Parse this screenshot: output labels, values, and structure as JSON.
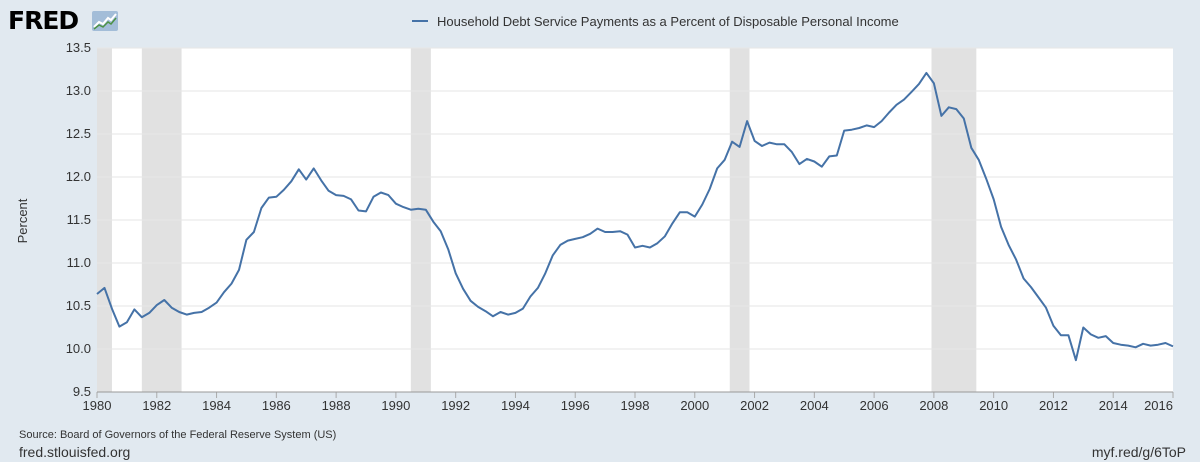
{
  "header": {
    "logo_text": "FRED",
    "logo_icon": "line-chart-icon"
  },
  "footer": {
    "source": "Source: Board of Governors of the Federal Reserve System (US)",
    "site": "fred.stlouisfed.org",
    "short_url": "myf.red/g/6ToP"
  },
  "colors": {
    "series": "#4572a7",
    "recession": "#e1e1e1",
    "frame_bg": "#e1e9f0",
    "plot_bg": "#ffffff"
  },
  "chart_data": {
    "type": "line",
    "title": "",
    "xlabel": "",
    "ylabel": "Percent",
    "legend_position": "top-center",
    "grid": true,
    "xlim": [
      1980,
      2016
    ],
    "ylim": [
      9.5,
      13.5
    ],
    "x_ticks": [
      1980,
      1982,
      1984,
      1986,
      1988,
      1990,
      1992,
      1994,
      1996,
      1998,
      2000,
      2002,
      2004,
      2006,
      2008,
      2010,
      2012,
      2014,
      2016
    ],
    "x_tick_labels": [
      "1980",
      "1982",
      "1984",
      "1986",
      "1988",
      "1990",
      "1992",
      "1994",
      "1996",
      "1998",
      "2000",
      "2002",
      "2004",
      "2006",
      "2008",
      "2010",
      "2012",
      "2014",
      "2016"
    ],
    "y_ticks": [
      9.5,
      10.0,
      10.5,
      11.0,
      11.5,
      12.0,
      12.5,
      13.0,
      13.5
    ],
    "y_tick_labels": [
      "9.5",
      "10.0",
      "10.5",
      "11.0",
      "11.5",
      "12.0",
      "12.5",
      "13.0",
      "13.5"
    ],
    "recessions": [
      [
        1980.0,
        1980.5
      ],
      [
        1981.5,
        1982.83
      ],
      [
        1990.5,
        1991.17
      ],
      [
        2001.17,
        2001.83
      ],
      [
        2007.92,
        2009.42
      ]
    ],
    "series": [
      {
        "name": "Household Debt Service Payments as a Percent of Disposable Personal Income",
        "x": [
          1980.0,
          1980.25,
          1980.5,
          1980.75,
          1981.0,
          1981.25,
          1981.5,
          1981.75,
          1982.0,
          1982.25,
          1982.5,
          1982.75,
          1983.0,
          1983.25,
          1983.5,
          1983.75,
          1984.0,
          1984.25,
          1984.5,
          1984.75,
          1985.0,
          1985.25,
          1985.5,
          1985.75,
          1986.0,
          1986.25,
          1986.5,
          1986.75,
          1987.0,
          1987.25,
          1987.5,
          1987.75,
          1988.0,
          1988.25,
          1988.5,
          1988.75,
          1989.0,
          1989.25,
          1989.5,
          1989.75,
          1990.0,
          1990.25,
          1990.5,
          1990.75,
          1991.0,
          1991.25,
          1991.5,
          1991.75,
          1992.0,
          1992.25,
          1992.5,
          1992.75,
          1993.0,
          1993.25,
          1993.5,
          1993.75,
          1994.0,
          1994.25,
          1994.5,
          1994.75,
          1995.0,
          1995.25,
          1995.5,
          1995.75,
          1996.0,
          1996.25,
          1996.5,
          1996.75,
          1997.0,
          1997.25,
          1997.5,
          1997.75,
          1998.0,
          1998.25,
          1998.5,
          1998.75,
          1999.0,
          1999.25,
          1999.5,
          1999.75,
          2000.0,
          2000.25,
          2000.5,
          2000.75,
          2001.0,
          2001.25,
          2001.5,
          2001.75,
          2002.0,
          2002.25,
          2002.5,
          2002.75,
          2003.0,
          2003.25,
          2003.5,
          2003.75,
          2004.0,
          2004.25,
          2004.5,
          2004.75,
          2005.0,
          2005.25,
          2005.5,
          2005.75,
          2006.0,
          2006.25,
          2006.5,
          2006.75,
          2007.0,
          2007.25,
          2007.5,
          2007.75,
          2008.0,
          2008.25,
          2008.5,
          2008.75,
          2009.0,
          2009.25,
          2009.5,
          2009.75,
          2010.0,
          2010.25,
          2010.5,
          2010.75,
          2011.0,
          2011.25,
          2011.5,
          2011.75,
          2012.0,
          2012.25,
          2012.5,
          2012.75,
          2013.0,
          2013.25,
          2013.5,
          2013.75,
          2014.0,
          2014.25,
          2014.5,
          2014.75,
          2015.0,
          2015.25,
          2015.5,
          2015.75,
          2016.0
        ],
        "y": [
          10.64,
          10.71,
          10.47,
          10.26,
          10.31,
          10.46,
          10.37,
          10.42,
          10.51,
          10.57,
          10.48,
          10.43,
          10.4,
          10.42,
          10.43,
          10.48,
          10.54,
          10.66,
          10.76,
          10.92,
          11.27,
          11.36,
          11.64,
          11.76,
          11.77,
          11.85,
          11.95,
          12.09,
          11.97,
          12.1,
          11.96,
          11.84,
          11.79,
          11.78,
          11.74,
          11.61,
          11.6,
          11.77,
          11.82,
          11.79,
          11.69,
          11.65,
          11.62,
          11.63,
          11.62,
          11.48,
          11.37,
          11.16,
          10.88,
          10.7,
          10.56,
          10.49,
          10.44,
          10.38,
          10.43,
          10.4,
          10.42,
          10.47,
          10.61,
          10.71,
          10.88,
          11.09,
          11.21,
          11.26,
          11.28,
          11.3,
          11.34,
          11.4,
          11.36,
          11.36,
          11.37,
          11.33,
          11.18,
          11.2,
          11.18,
          11.23,
          11.31,
          11.46,
          11.59,
          11.59,
          11.54,
          11.68,
          11.86,
          12.1,
          12.2,
          12.41,
          12.35,
          12.65,
          12.42,
          12.36,
          12.4,
          12.38,
          12.38,
          12.29,
          12.15,
          12.21,
          12.18,
          12.12,
          12.24,
          12.25,
          12.54,
          12.55,
          12.57,
          12.6,
          12.58,
          12.65,
          12.75,
          12.84,
          12.9,
          12.99,
          13.08,
          13.21,
          13.09,
          12.71,
          12.81,
          12.79,
          12.68,
          12.34,
          12.2,
          11.98,
          11.74,
          11.42,
          11.21,
          11.04,
          10.82,
          10.72,
          10.6,
          10.48,
          10.27,
          10.16,
          10.16,
          9.87,
          10.25,
          10.17,
          10.13,
          10.15,
          10.07,
          10.05,
          10.04,
          10.02,
          10.06,
          10.04,
          10.05,
          10.07,
          10.03
        ]
      }
    ]
  }
}
